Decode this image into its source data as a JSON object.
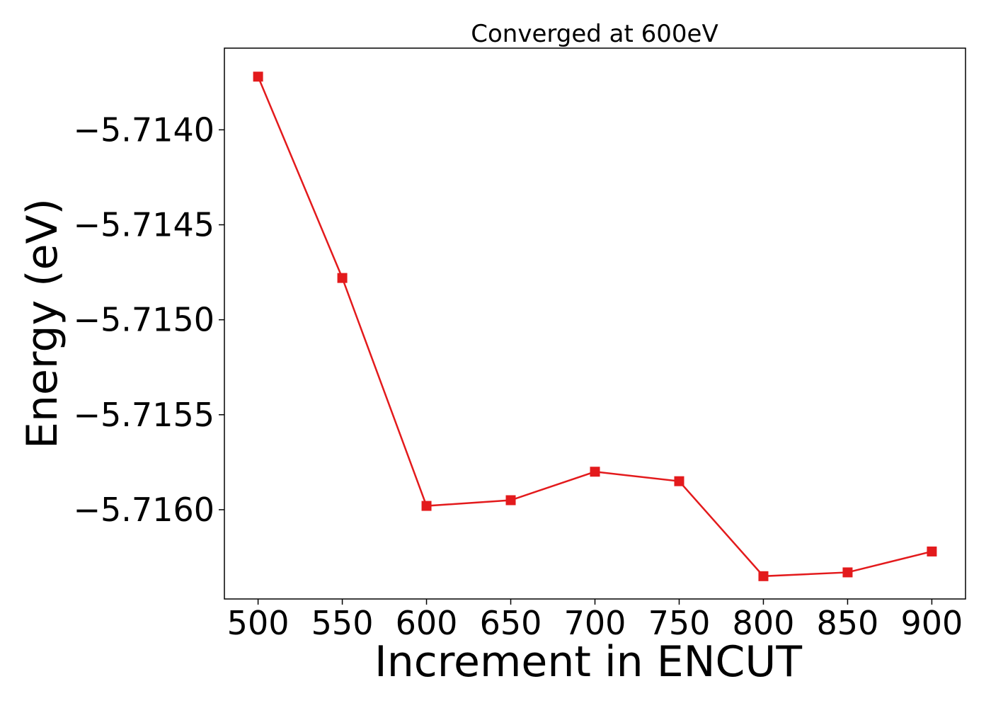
{
  "chart_data": {
    "type": "line",
    "title": "Converged at 600eV",
    "xlabel": "Increment in ENCUT",
    "ylabel": "Energy (eV)",
    "x": [
      500,
      550,
      600,
      650,
      700,
      750,
      800,
      850,
      900
    ],
    "series": [
      {
        "values": [
          -5.71372,
          -5.71478,
          -5.71598,
          -5.71595,
          -5.7158,
          -5.71585,
          -5.71635,
          -5.71633,
          -5.71622
        ],
        "color": "#e31a1c",
        "marker": "square"
      }
    ],
    "xticks": [
      500,
      550,
      600,
      650,
      700,
      750,
      800,
      850,
      900
    ],
    "xtick_labels": [
      "500",
      "550",
      "600",
      "650",
      "700",
      "750",
      "800",
      "850",
      "900"
    ],
    "yticks": [
      -5.714,
      -5.7145,
      -5.715,
      -5.7155,
      -5.716
    ],
    "ytick_labels": [
      "−5.7140",
      "−5.7145",
      "−5.7150",
      "−5.7155",
      "−5.7160"
    ],
    "xlim": [
      480,
      920
    ],
    "ylim": [
      -5.71647,
      -5.71357
    ],
    "grid": false,
    "legend": "none"
  }
}
